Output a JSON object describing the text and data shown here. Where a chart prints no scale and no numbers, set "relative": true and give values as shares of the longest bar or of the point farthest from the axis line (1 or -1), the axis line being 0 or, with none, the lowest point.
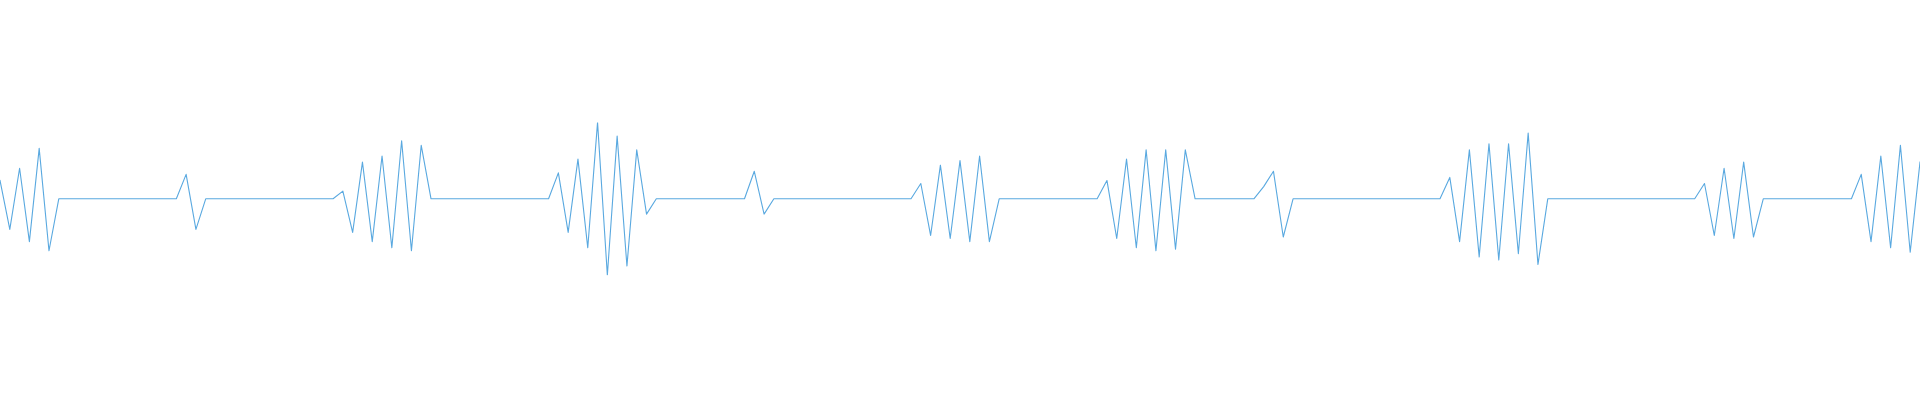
{
  "chart_data": {
    "type": "line",
    "relative": true,
    "line_style": "solid",
    "marker": "none",
    "categories": [
      null,
      null,
      null,
      null,
      null,
      null,
      null,
      null,
      null,
      null,
      null,
      null,
      null,
      null,
      null,
      null,
      null,
      null,
      null,
      null,
      null,
      null,
      null,
      null,
      null,
      null,
      null,
      null,
      null,
      null,
      null,
      null,
      null,
      null,
      null,
      null,
      null,
      null,
      null,
      null,
      null,
      null,
      null,
      null,
      null,
      null,
      null,
      null,
      null,
      null,
      null,
      null,
      null,
      null,
      null,
      null,
      null,
      null,
      null,
      null,
      null,
      null,
      null,
      null,
      null,
      null,
      null,
      null,
      null,
      null,
      null,
      null,
      null,
      null,
      null,
      null,
      null,
      null,
      null,
      null,
      null,
      null,
      null,
      null,
      null,
      null,
      null,
      null,
      null,
      null,
      null,
      null,
      null,
      null,
      null,
      null,
      null,
      null,
      null,
      null,
      null,
      null,
      null,
      null,
      null,
      null,
      null,
      null,
      null,
      null,
      null,
      null,
      null,
      null,
      null,
      null,
      null,
      null,
      null,
      null,
      null,
      null,
      null,
      null,
      null,
      null,
      null,
      null,
      null,
      null,
      null,
      null,
      null,
      null,
      null,
      null,
      null,
      null,
      null,
      null,
      null,
      null,
      null,
      null,
      null,
      null,
      null,
      null,
      null,
      null,
      null,
      null,
      null,
      null,
      null,
      null,
      null,
      null,
      null,
      null,
      null,
      null,
      null,
      null,
      null,
      null,
      null,
      null,
      null,
      null,
      null,
      null,
      null,
      null,
      null,
      null,
      null,
      null,
      null,
      null,
      null,
      null,
      null,
      null,
      null,
      null,
      null,
      null,
      null,
      null,
      null,
      null,
      null,
      null,
      null,
      null,
      null
    ],
    "series": [
      {
        "color": "#5aa9e0",
        "values": [
          0.62,
          0.3,
          0.7,
          0.22,
          0.83,
          0.16,
          0.5,
          0.5,
          0.5,
          0.5,
          0.5,
          0.5,
          0.5,
          0.5,
          0.5,
          0.5,
          0.5,
          0.5,
          0.5,
          0.66,
          0.3,
          0.5,
          0.5,
          0.5,
          0.5,
          0.5,
          0.5,
          0.5,
          0.5,
          0.5,
          0.5,
          0.5,
          0.5,
          0.5,
          0.5,
          0.55,
          0.28,
          0.74,
          0.22,
          0.78,
          0.18,
          0.88,
          0.16,
          0.85,
          0.5,
          0.5,
          0.5,
          0.5,
          0.5,
          0.5,
          0.5,
          0.5,
          0.5,
          0.5,
          0.5,
          0.5,
          0.5,
          0.67,
          0.28,
          0.76,
          0.18,
          1,
          0,
          0.91,
          0.06,
          0.82,
          0.4,
          0.5,
          0.5,
          0.5,
          0.5,
          0.5,
          0.5,
          0.5,
          0.5,
          0.5,
          0.5,
          0.68,
          0.4,
          0.5,
          0.5,
          0.5,
          0.5,
          0.5,
          0.5,
          0.5,
          0.5,
          0.5,
          0.5,
          0.5,
          0.5,
          0.5,
          0.5,
          0.5,
          0.6,
          0.26,
          0.72,
          0.24,
          0.75,
          0.22,
          0.78,
          0.22,
          0.5,
          0.5,
          0.5,
          0.5,
          0.5,
          0.5,
          0.5,
          0.5,
          0.5,
          0.5,
          0.5,
          0.62,
          0.24,
          0.76,
          0.18,
          0.82,
          0.16,
          0.82,
          0.17,
          0.82,
          0.5,
          0.5,
          0.5,
          0.5,
          0.5,
          0.5,
          0.5,
          0.58,
          0.68,
          0.25,
          0.5,
          0.5,
          0.5,
          0.5,
          0.5,
          0.5,
          0.5,
          0.5,
          0.5,
          0.5,
          0.5,
          0.5,
          0.5,
          0.5,
          0.5,
          0.5,
          0.64,
          0.22,
          0.82,
          0.12,
          0.86,
          0.1,
          0.86,
          0.14,
          0.93,
          0.07,
          0.5,
          0.5,
          0.5,
          0.5,
          0.5,
          0.5,
          0.5,
          0.5,
          0.5,
          0.5,
          0.5,
          0.5,
          0.5,
          0.5,
          0.5,
          0.5,
          0.6,
          0.26,
          0.7,
          0.24,
          0.74,
          0.25,
          0.5,
          0.5,
          0.5,
          0.5,
          0.5,
          0.5,
          0.5,
          0.5,
          0.5,
          0.5,
          0.66,
          0.22,
          0.78,
          0.18,
          0.85,
          0.15,
          0.74
        ]
      }
    ]
  }
}
